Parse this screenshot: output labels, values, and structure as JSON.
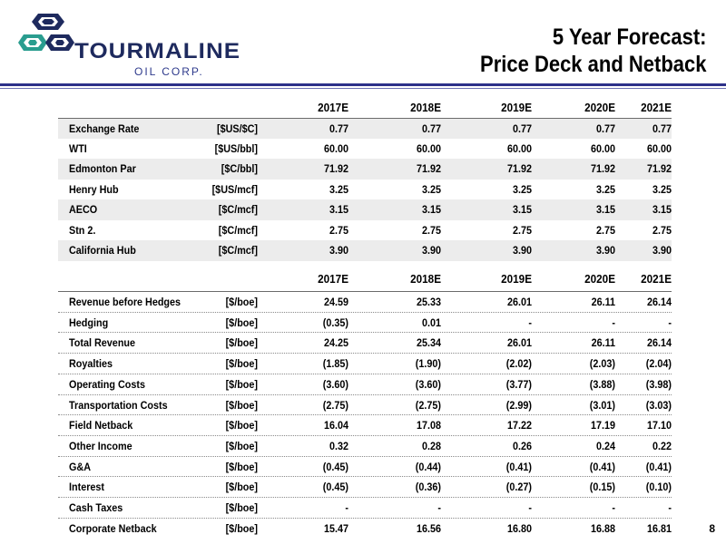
{
  "header": {
    "logo_name": "TOURMALINE",
    "logo_sub": "OIL CORP.",
    "title_line1": "5 Year Forecast:",
    "title_line2": "Price Deck and Netback",
    "brand_colors": {
      "navy": "#1e2a5e",
      "teal": "#2a9d8f",
      "rule": "#2d3189"
    }
  },
  "price_deck": {
    "years": [
      "2017E",
      "2018E",
      "2019E",
      "2020E",
      "2021E"
    ],
    "rows": [
      {
        "label": "Exchange Rate",
        "unit": "[$US/$C]",
        "values": [
          "0.77",
          "0.77",
          "0.77",
          "0.77",
          "0.77"
        ]
      },
      {
        "label": "WTI",
        "unit": "[$US/bbl]",
        "values": [
          "60.00",
          "60.00",
          "60.00",
          "60.00",
          "60.00"
        ]
      },
      {
        "label": "Edmonton Par",
        "unit": "[$C/bbl]",
        "values": [
          "71.92",
          "71.92",
          "71.92",
          "71.92",
          "71.92"
        ]
      },
      {
        "label": "Henry Hub",
        "unit": "[$US/mcf]",
        "values": [
          "3.25",
          "3.25",
          "3.25",
          "3.25",
          "3.25"
        ]
      },
      {
        "label": "AECO",
        "unit": "[$C/mcf]",
        "values": [
          "3.15",
          "3.15",
          "3.15",
          "3.15",
          "3.15"
        ]
      },
      {
        "label": "Stn 2.",
        "unit": "[$C/mcf]",
        "values": [
          "2.75",
          "2.75",
          "2.75",
          "2.75",
          "2.75"
        ]
      },
      {
        "label": "California Hub",
        "unit": "[$C/mcf]",
        "values": [
          "3.90",
          "3.90",
          "3.90",
          "3.90",
          "3.90"
        ]
      }
    ]
  },
  "netback": {
    "years": [
      "2017E",
      "2018E",
      "2019E",
      "2020E",
      "2021E"
    ],
    "rows": [
      {
        "label": "Revenue before Hedges",
        "unit": "[$/boe]",
        "values": [
          "24.59",
          "25.33",
          "26.01",
          "26.11",
          "26.14"
        ]
      },
      {
        "label": "Hedging",
        "unit": "[$/boe]",
        "values": [
          "(0.35)",
          "0.01",
          "-",
          "-",
          "-"
        ]
      },
      {
        "label": "Total Revenue",
        "unit": "[$/boe]",
        "values": [
          "24.25",
          "25.34",
          "26.01",
          "26.11",
          "26.14"
        ]
      },
      {
        "label": "Royalties",
        "unit": "[$/boe]",
        "values": [
          "(1.85)",
          "(1.90)",
          "(2.02)",
          "(2.03)",
          "(2.04)"
        ]
      },
      {
        "label": "Operating Costs",
        "unit": "[$/boe]",
        "values": [
          "(3.60)",
          "(3.60)",
          "(3.77)",
          "(3.88)",
          "(3.98)"
        ]
      },
      {
        "label": "Transportation Costs",
        "unit": "[$/boe]",
        "values": [
          "(2.75)",
          "(2.75)",
          "(2.99)",
          "(3.01)",
          "(3.03)"
        ]
      },
      {
        "label": "Field Netback",
        "unit": "[$/boe]",
        "values": [
          "16.04",
          "17.08",
          "17.22",
          "17.19",
          "17.10"
        ]
      },
      {
        "label": "Other Income",
        "unit": "[$/boe]",
        "values": [
          "0.32",
          "0.28",
          "0.26",
          "0.24",
          "0.22"
        ]
      },
      {
        "label": "G&A",
        "unit": "[$/boe]",
        "values": [
          "(0.45)",
          "(0.44)",
          "(0.41)",
          "(0.41)",
          "(0.41)"
        ]
      },
      {
        "label": "Interest",
        "unit": "[$/boe]",
        "values": [
          "(0.45)",
          "(0.36)",
          "(0.27)",
          "(0.15)",
          "(0.10)"
        ]
      },
      {
        "label": "Cash Taxes",
        "unit": "[$/boe]",
        "values": [
          "-",
          "-",
          "-",
          "-",
          "-"
        ]
      },
      {
        "label": "Corporate Netback",
        "unit": "[$/boe]",
        "values": [
          "15.47",
          "16.56",
          "16.80",
          "16.88",
          "16.81"
        ]
      }
    ]
  },
  "page_number": "8"
}
